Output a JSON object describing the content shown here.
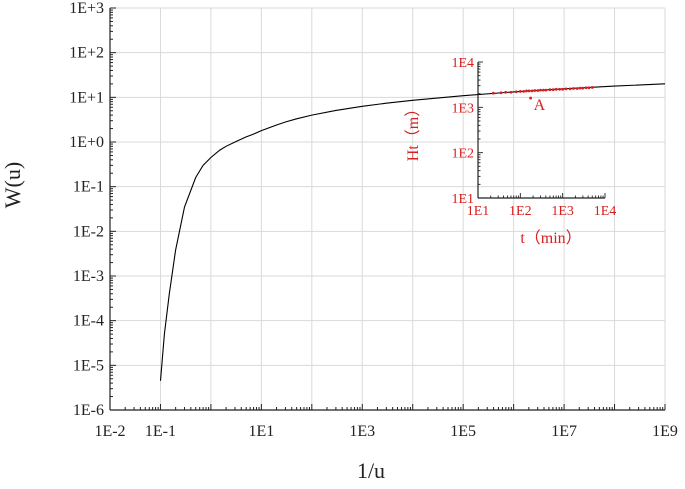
{
  "chart_data": [
    {
      "type": "line",
      "x_scale": "log",
      "y_scale": "log",
      "xlabel": "1/u",
      "ylabel": "W(u)",
      "xlim": [
        0.01,
        1000000000
      ],
      "ylim": [
        1e-06,
        1000
      ],
      "x_ticks": [
        0.01,
        0.1,
        10,
        1000,
        100000,
        10000000,
        1000000000
      ],
      "x_tick_labels": [
        "1E-2",
        "1E-1",
        "1E1",
        "1E3",
        "1E5",
        "1E7",
        "1E9"
      ],
      "y_ticks": [
        1e-06,
        1e-05,
        0.0001,
        0.001,
        0.01,
        0.1,
        1,
        10,
        100,
        1000
      ],
      "y_tick_labels": [
        "1E-6",
        "1E-5",
        "1E-4",
        "1E-3",
        "1E-2",
        "1E-1",
        "1E+0",
        "1E+1",
        "1E+2",
        "1E+3"
      ],
      "grid": true,
      "series": [
        {
          "color": "#000000",
          "x": [
            0.1,
            0.12,
            0.15,
            0.2,
            0.3,
            0.5,
            0.7,
            1,
            1.5,
            2,
            3,
            5,
            7,
            10,
            20,
            30,
            50,
            100,
            300,
            1000,
            3000,
            10000,
            100000,
            1000000,
            10000000,
            100000000,
            1000000000
          ],
          "y": [
            4.5e-06,
            5e-05,
            0.0004,
            0.0038,
            0.035,
            0.16,
            0.3,
            0.45,
            0.66,
            0.8,
            1.0,
            1.3,
            1.5,
            1.8,
            2.4,
            2.8,
            3.3,
            4.0,
            5.1,
            6.3,
            7.4,
            8.6,
            10.9,
            13.2,
            15.5,
            17.8,
            20.1
          ]
        }
      ]
    },
    {
      "type": "scatter",
      "x_scale": "log",
      "y_scale": "log",
      "xlabel": "t（min）",
      "ylabel": "Ht（m）",
      "xlim": [
        10,
        10000
      ],
      "ylim": [
        10,
        10000
      ],
      "x_ticks": [
        10,
        100,
        1000,
        10000
      ],
      "x_tick_labels": [
        "1E1",
        "1E2",
        "1E3",
        "1E4"
      ],
      "y_ticks": [
        10,
        100,
        1000,
        10000
      ],
      "y_tick_labels": [
        "1E1",
        "1E2",
        "1E3",
        "1E4"
      ],
      "color": "#d62020",
      "annotations": [
        {
          "text": "A",
          "x": 175,
          "y": 1600
        }
      ],
      "series": [
        {
          "color": "#d62020",
          "x": [
            23,
            35,
            45,
            60,
            80,
            100,
            120,
            140,
            160,
            190,
            220,
            260,
            300,
            350,
            400,
            500,
            600,
            700,
            850,
            1000,
            1200,
            1500,
            1800,
            2200,
            2600,
            3000,
            3600,
            4200,
            5000
          ],
          "y": [
            2050,
            2100,
            2150,
            2150,
            2200,
            2250,
            2250,
            2300,
            2300,
            2300,
            2350,
            2350,
            2400,
            2400,
            2400,
            2450,
            2450,
            2500,
            2500,
            2500,
            2550,
            2550,
            2600,
            2600,
            2650,
            2650,
            2700,
            2700,
            2750
          ]
        },
        {
          "color": "#d62020",
          "x": [
            175
          ],
          "y": [
            1600
          ]
        }
      ]
    }
  ]
}
